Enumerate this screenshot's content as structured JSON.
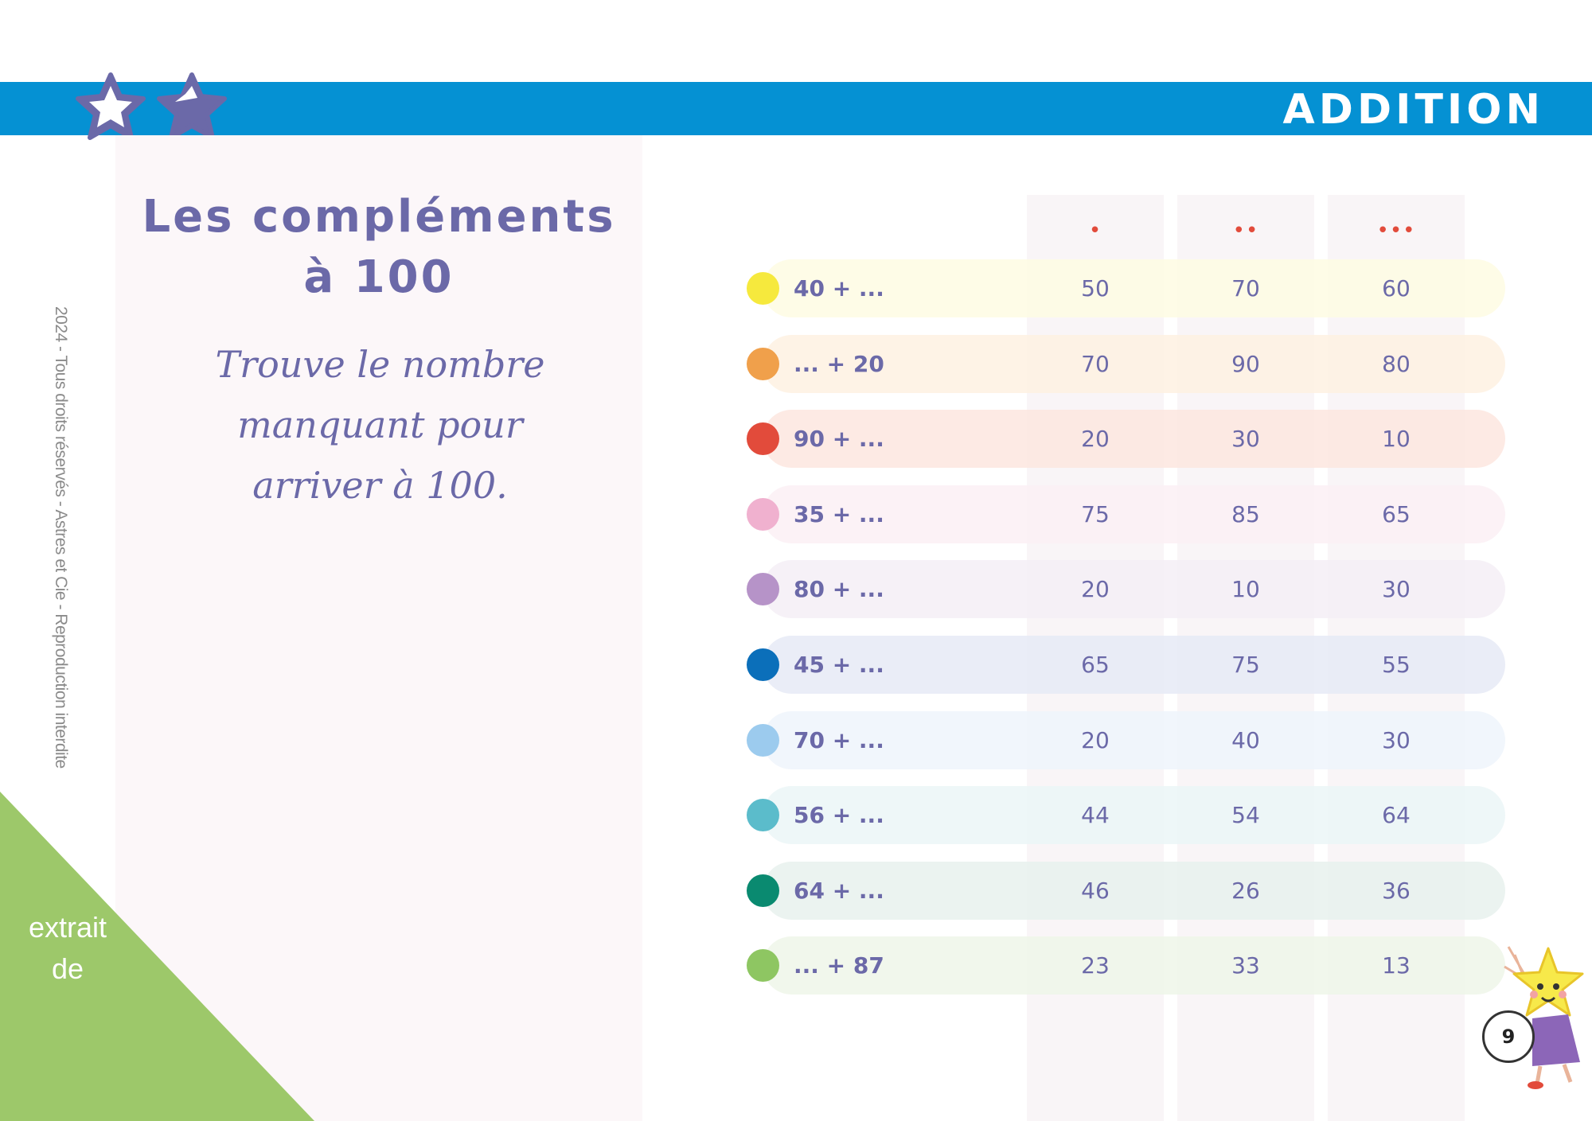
{
  "header": {
    "title": "ADDITION",
    "icons": [
      "star-outline-icon",
      "star-filled-icon"
    ]
  },
  "lesson": {
    "heading_line1": "Les compléments",
    "heading_line2": "à 100",
    "instruction_line1": "Trouve le nombre",
    "instruction_line2": "manquant pour",
    "instruction_line3": "arriver à 100."
  },
  "side_note": "2024 - Tous droits réservés - Astres et Cie - Reproduction interdite",
  "corner": {
    "line1": "extrait",
    "line2": "de"
  },
  "difficulty_markers": [
    "•",
    "••",
    "•••"
  ],
  "colors": {
    "banner": "#0591d3",
    "corner": "#9dc86a",
    "text": "#6b69a8",
    "dots": "#e24b3b"
  },
  "rows": [
    {
      "expr": "40 + ...",
      "color": "#f6e93d",
      "band": "#fefbe3",
      "values": [
        "50",
        "70",
        "60"
      ]
    },
    {
      "expr": "... + 20",
      "color": "#f0a04b",
      "band": "#fef1e2",
      "values": [
        "70",
        "90",
        "80"
      ]
    },
    {
      "expr": "90 + ...",
      "color": "#e24b3b",
      "band": "#fde6df",
      "values": [
        "20",
        "30",
        "10"
      ]
    },
    {
      "expr": "35 + ...",
      "color": "#f0b1cf",
      "band": "#fcf0f5",
      "values": [
        "75",
        "85",
        "65"
      ]
    },
    {
      "expr": "80 + ...",
      "color": "#b693c8",
      "band": "#f5eff6",
      "values": [
        "20",
        "10",
        "30"
      ]
    },
    {
      "expr": "45 + ...",
      "color": "#0b6fba",
      "band": "#e6eaf6",
      "values": [
        "65",
        "75",
        "55"
      ]
    },
    {
      "expr": "70 + ...",
      "color": "#9ccbee",
      "band": "#eff5fc",
      "values": [
        "20",
        "40",
        "30"
      ]
    },
    {
      "expr": "56 + ...",
      "color": "#5bbccb",
      "band": "#ebf6f7",
      "values": [
        "44",
        "54",
        "64"
      ]
    },
    {
      "expr": "64 + ...",
      "color": "#0a8a70",
      "band": "#e7f1ed",
      "values": [
        "46",
        "26",
        "36"
      ]
    },
    {
      "expr": "... + 87",
      "color": "#8ec662",
      "band": "#eff6e9",
      "values": [
        "23",
        "33",
        "13"
      ]
    }
  ],
  "page_number": "9"
}
